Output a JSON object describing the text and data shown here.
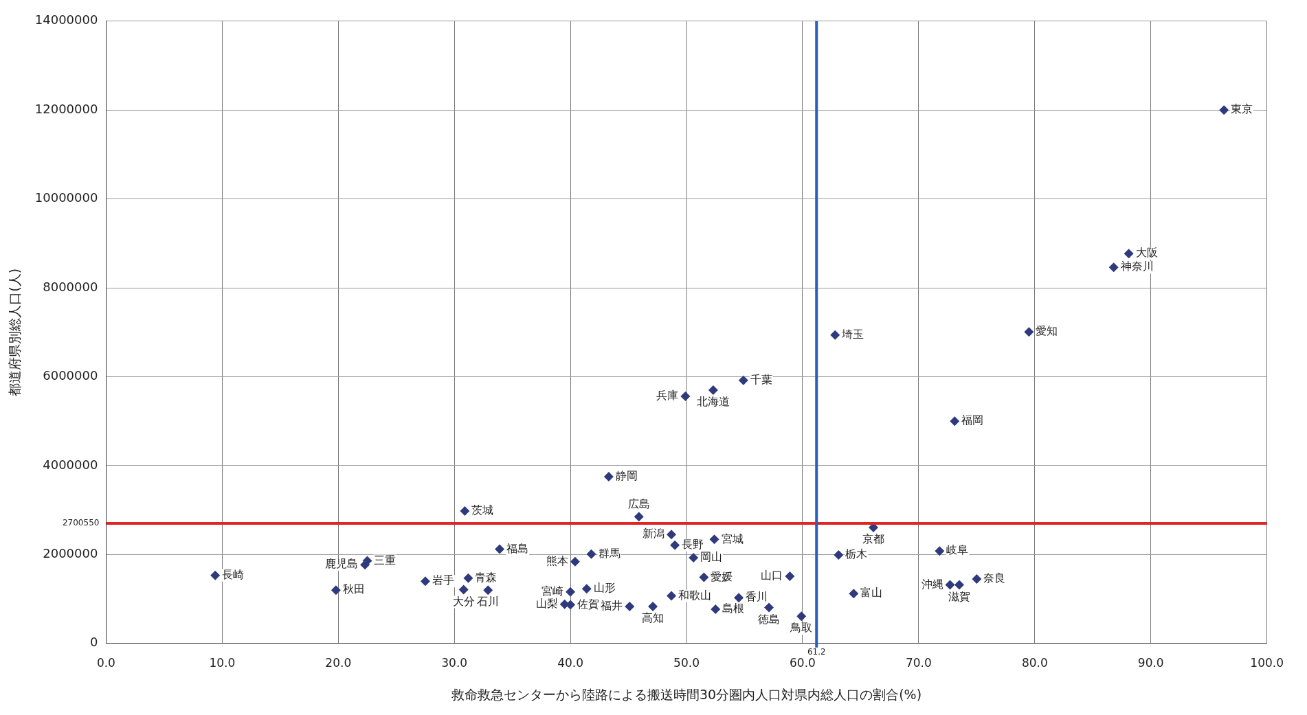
{
  "chart_data": {
    "type": "scatter",
    "xlabel": "救命救急センターから陸路による搬送時間30分圏内人口対県内総人口の割合(%)",
    "ylabel": "都道府県別総人口(人)",
    "xlim": [
      0,
      100
    ],
    "ylim": [
      0,
      14000000
    ],
    "xticks": [
      {
        "value": 0,
        "label": "0.0"
      },
      {
        "value": 10,
        "label": "10.0"
      },
      {
        "value": 20,
        "label": "20.0"
      },
      {
        "value": 30,
        "label": "30.0"
      },
      {
        "value": 40,
        "label": "40.0"
      },
      {
        "value": 50,
        "label": "50.0"
      },
      {
        "value": 60,
        "label": "60.0"
      },
      {
        "value": 70,
        "label": "70.0"
      },
      {
        "value": 80,
        "label": "80.0"
      },
      {
        "value": 90,
        "label": "90.0"
      },
      {
        "value": 100,
        "label": "100.0"
      }
    ],
    "yticks": [
      0,
      2000000,
      4000000,
      6000000,
      8000000,
      10000000,
      12000000,
      14000000
    ],
    "grid": true,
    "legend": false,
    "marker": "diamond",
    "ref_lines": [
      {
        "axis": "y",
        "value": 2700550,
        "label": "2700550",
        "color": "#e02525"
      },
      {
        "axis": "x",
        "value": 61.2,
        "label": "61.2",
        "color": "#2b5fbd"
      }
    ],
    "series": [
      {
        "name": "東京",
        "color": "#2e3a7c",
        "x": [
          96.3
        ],
        "values": [
          12000000
        ]
      },
      {
        "name": "大阪",
        "color": "#2e3a7c",
        "x": [
          88.1
        ],
        "values": [
          8770000
        ]
      },
      {
        "name": "神奈川",
        "color": "#2e3a7c",
        "x": [
          86.8
        ],
        "values": [
          8460000
        ]
      },
      {
        "name": "愛知",
        "color": "#2e3a7c",
        "x": [
          79.5
        ],
        "values": [
          7010000
        ]
      },
      {
        "name": "埼玉",
        "color": "#2e3a7c",
        "x": [
          62.8
        ],
        "values": [
          6940000
        ]
      },
      {
        "name": "千葉",
        "color": "#2e3a7c",
        "x": [
          54.9
        ],
        "values": [
          5920000
        ]
      },
      {
        "name": "北海道",
        "color": "#2e3a7c",
        "x": [
          52.3
        ],
        "values": [
          5700000
        ]
      },
      {
        "name": "兵庫",
        "color": "#2e3a7c",
        "x": [
          49.9
        ],
        "values": [
          5560000
        ]
      },
      {
        "name": "福岡",
        "color": "#2e3a7c",
        "x": [
          73.1
        ],
        "values": [
          5000000
        ]
      },
      {
        "name": "静岡",
        "color": "#2e3a7c",
        "x": [
          43.3
        ],
        "values": [
          3750000
        ]
      },
      {
        "name": "広島",
        "color": "#2e3a7c",
        "x": [
          45.9
        ],
        "values": [
          2850000
        ]
      },
      {
        "name": "茨城",
        "color": "#2e3a7c",
        "x": [
          30.9
        ],
        "values": [
          2980000
        ]
      },
      {
        "name": "京都",
        "color": "#2e3a7c",
        "x": [
          66.1
        ],
        "values": [
          2610000
        ]
      },
      {
        "name": "新潟",
        "color": "#2e3a7c",
        "x": [
          48.7
        ],
        "values": [
          2450000
        ]
      },
      {
        "name": "宮城",
        "color": "#2e3a7c",
        "x": [
          52.4
        ],
        "values": [
          2340000
        ]
      },
      {
        "name": "長野",
        "color": "#2e3a7c",
        "x": [
          49.0
        ],
        "values": [
          2210000
        ]
      },
      {
        "name": "岡山",
        "color": "#2e3a7c",
        "x": [
          50.6
        ],
        "values": [
          1930000
        ]
      },
      {
        "name": "福島",
        "color": "#2e3a7c",
        "x": [
          33.9
        ],
        "values": [
          2120000
        ]
      },
      {
        "name": "群馬",
        "color": "#2e3a7c",
        "x": [
          41.8
        ],
        "values": [
          2010000
        ]
      },
      {
        "name": "熊本",
        "color": "#2e3a7c",
        "x": [
          40.4
        ],
        "values": [
          1840000
        ]
      },
      {
        "name": "栃木",
        "color": "#2e3a7c",
        "x": [
          63.1
        ],
        "values": [
          1990000
        ]
      },
      {
        "name": "岐阜",
        "color": "#2e3a7c",
        "x": [
          71.8
        ],
        "values": [
          2080000
        ]
      },
      {
        "name": "三重",
        "color": "#2e3a7c",
        "x": [
          22.5
        ],
        "values": [
          1860000
        ]
      },
      {
        "name": "鹿児島",
        "color": "#2e3a7c",
        "x": [
          22.3
        ],
        "values": [
          1770000
        ]
      },
      {
        "name": "長崎",
        "color": "#2e3a7c",
        "x": [
          9.4
        ],
        "values": [
          1530000
        ]
      },
      {
        "name": "秋田",
        "color": "#2e3a7c",
        "x": [
          19.8
        ],
        "values": [
          1200000
        ]
      },
      {
        "name": "岩手",
        "color": "#2e3a7c",
        "x": [
          27.5
        ],
        "values": [
          1400000
        ]
      },
      {
        "name": "青森",
        "color": "#2e3a7c",
        "x": [
          31.2
        ],
        "values": [
          1470000
        ]
      },
      {
        "name": "大分",
        "color": "#2e3a7c",
        "x": [
          30.8
        ],
        "values": [
          1210000
        ]
      },
      {
        "name": "石川",
        "color": "#2e3a7c",
        "x": [
          32.9
        ],
        "values": [
          1200000
        ]
      },
      {
        "name": "愛媛",
        "color": "#2e3a7c",
        "x": [
          51.5
        ],
        "values": [
          1490000
        ]
      },
      {
        "name": "山口",
        "color": "#2e3a7c",
        "x": [
          58.9
        ],
        "values": [
          1510000
        ]
      },
      {
        "name": "宮崎",
        "color": "#2e3a7c",
        "x": [
          40.0
        ],
        "values": [
          1160000
        ]
      },
      {
        "name": "山形",
        "color": "#2e3a7c",
        "x": [
          41.4
        ],
        "values": [
          1230000
        ]
      },
      {
        "name": "山梨",
        "color": "#2e3a7c",
        "x": [
          39.5
        ],
        "values": [
          880000
        ]
      },
      {
        "name": "佐賀",
        "color": "#2e3a7c",
        "x": [
          40.0
        ],
        "values": [
          870000
        ]
      },
      {
        "name": "福井",
        "color": "#2e3a7c",
        "x": [
          45.1
        ],
        "values": [
          830000
        ]
      },
      {
        "name": "高知",
        "color": "#2e3a7c",
        "x": [
          47.1
        ],
        "values": [
          830000
        ]
      },
      {
        "name": "和歌山",
        "color": "#2e3a7c",
        "x": [
          48.7
        ],
        "values": [
          1070000
        ]
      },
      {
        "name": "島根",
        "color": "#2e3a7c",
        "x": [
          52.5
        ],
        "values": [
          770000
        ]
      },
      {
        "name": "香川",
        "color": "#2e3a7c",
        "x": [
          54.5
        ],
        "values": [
          1030000
        ]
      },
      {
        "name": "徳島",
        "color": "#2e3a7c",
        "x": [
          57.1
        ],
        "values": [
          810000
        ]
      },
      {
        "name": "鳥取",
        "color": "#2e3a7c",
        "x": [
          59.9
        ],
        "values": [
          610000
        ]
      },
      {
        "name": "富山",
        "color": "#2e3a7c",
        "x": [
          64.4
        ],
        "values": [
          1120000
        ]
      },
      {
        "name": "沖縄",
        "color": "#2e3a7c",
        "x": [
          72.7
        ],
        "values": [
          1320000
        ]
      },
      {
        "name": "滋賀",
        "color": "#2e3a7c",
        "x": [
          73.5
        ],
        "values": [
          1320000
        ]
      },
      {
        "name": "奈良",
        "color": "#2e3a7c",
        "x": [
          75.0
        ],
        "values": [
          1450000
        ]
      }
    ]
  }
}
